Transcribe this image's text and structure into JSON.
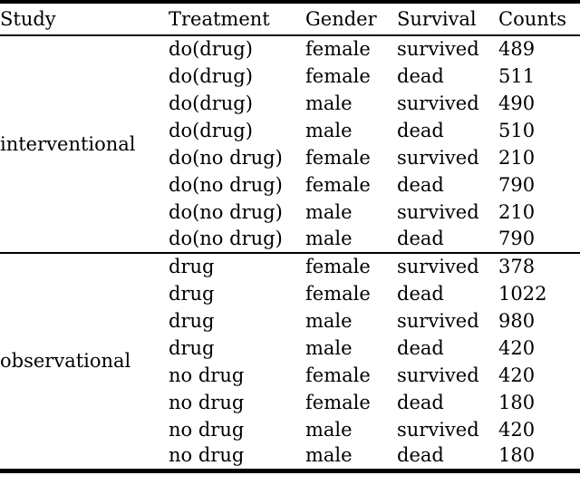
{
  "table": {
    "columns": [
      "Study",
      "Treatment",
      "Gender",
      "Survival",
      "Counts"
    ],
    "groups": [
      {
        "study": "interventional",
        "rows": [
          [
            "do(drug)",
            "female",
            "survived",
            "489"
          ],
          [
            "do(drug)",
            "female",
            "dead",
            "511"
          ],
          [
            "do(drug)",
            "male",
            "survived",
            "490"
          ],
          [
            "do(drug)",
            "male",
            "dead",
            "510"
          ],
          [
            "do(no drug)",
            "female",
            "survived",
            "210"
          ],
          [
            "do(no drug)",
            "female",
            "dead",
            "790"
          ],
          [
            "do(no drug)",
            "male",
            "survived",
            "210"
          ],
          [
            "do(no drug)",
            "male",
            "dead",
            "790"
          ]
        ]
      },
      {
        "study": "observational",
        "rows": [
          [
            "drug",
            "female",
            "survived",
            "378"
          ],
          [
            "drug",
            "female",
            "dead",
            "1022"
          ],
          [
            "drug",
            "male",
            "survived",
            "980"
          ],
          [
            "drug",
            "male",
            "dead",
            "420"
          ],
          [
            "no drug",
            "female",
            "survived",
            "420"
          ],
          [
            "no drug",
            "female",
            "dead",
            "180"
          ],
          [
            "no drug",
            "male",
            "survived",
            "420"
          ],
          [
            "no drug",
            "male",
            "dead",
            "180"
          ]
        ]
      }
    ],
    "colors": {
      "rule": "#000000",
      "text": "#000000",
      "background": "#ffffff"
    }
  }
}
